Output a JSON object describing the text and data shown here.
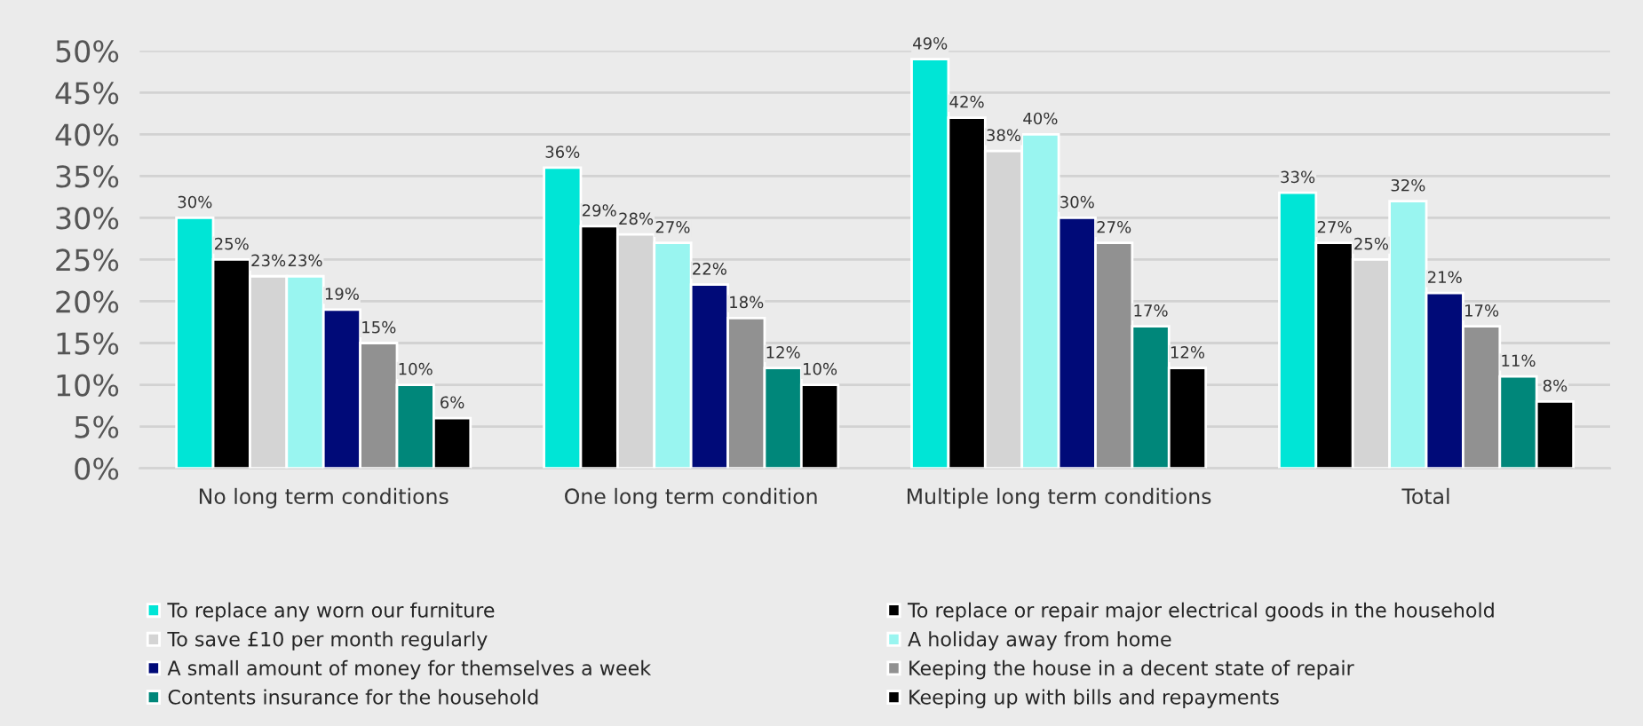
{
  "chart_data": {
    "type": "bar",
    "categories": [
      "No long term conditions",
      "One long term condition",
      "Multiple long term conditions",
      "Total"
    ],
    "series": [
      {
        "name": "To replace any worn our furniture",
        "color": "#00e5d6",
        "values": [
          30,
          36,
          49,
          33
        ],
        "value_labels": [
          "30%",
          "36%",
          "49%",
          "33%"
        ]
      },
      {
        "name": "To replace or repair major electrical goods in the household",
        "color": "#000000",
        "values": [
          25,
          29,
          42,
          27
        ],
        "value_labels": [
          "25%",
          "29%",
          "42%",
          "27%"
        ]
      },
      {
        "name": "To save £10 per month regularly",
        "color": "#d4d4d4",
        "values": [
          23,
          28,
          38,
          25
        ],
        "value_labels": [
          "23%",
          "28%",
          "38%",
          "25%"
        ]
      },
      {
        "name": "A holiday away from home",
        "color": "#99f5f0",
        "values": [
          23,
          27,
          40,
          32
        ],
        "value_labels": [
          "23%",
          "27%",
          "40%",
          "32%"
        ]
      },
      {
        "name": "A small amount of money for themselves a week",
        "color": "#000a78",
        "values": [
          19,
          22,
          30,
          21
        ],
        "value_labels": [
          "19%",
          "22%",
          "30%",
          "21%"
        ]
      },
      {
        "name": "Keeping the house in a decent state of repair",
        "color": "#919191",
        "values": [
          15,
          18,
          27,
          17
        ],
        "value_labels": [
          "15%",
          "18%",
          "27%",
          "17%"
        ]
      },
      {
        "name": "Contents insurance for the household",
        "color": "#00877a",
        "values": [
          10,
          12,
          17,
          11
        ],
        "value_labels": [
          "10%",
          "12%",
          "17%",
          "11%"
        ]
      },
      {
        "name": "Keeping up with bills and repayments",
        "color": "#000000",
        "values": [
          6,
          10,
          12,
          8
        ],
        "value_labels": [
          "6%",
          "10%",
          "12%",
          "8%"
        ]
      }
    ],
    "ylim": [
      0,
      50
    ],
    "yticks": [
      {
        "value": 0,
        "label": "0%"
      },
      {
        "value": 5,
        "label": "5%"
      },
      {
        "value": 10,
        "label": "10%"
      },
      {
        "value": 15,
        "label": "15%"
      },
      {
        "value": 20,
        "label": "20%"
      },
      {
        "value": 25,
        "label": "25%"
      },
      {
        "value": 30,
        "label": "30%"
      },
      {
        "value": 35,
        "label": "35%"
      },
      {
        "value": 40,
        "label": "40%"
      },
      {
        "value": 45,
        "label": "45%"
      },
      {
        "value": 50,
        "label": "50%"
      }
    ],
    "grid": "y",
    "legend": "bottom"
  }
}
